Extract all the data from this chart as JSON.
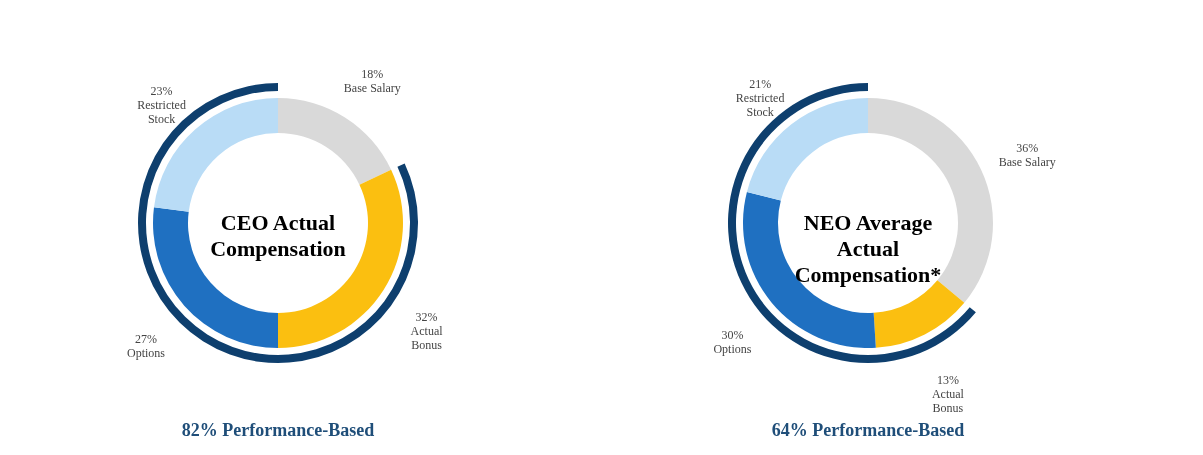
{
  "chart_data": [
    {
      "type": "donut",
      "title": "CEO Actual Compensation",
      "categories": [
        "Base Salary",
        "Actual Bonus",
        "Options",
        "Restricted Stock"
      ],
      "values": [
        18,
        32,
        27,
        23
      ],
      "colors": [
        "#d9d9d9",
        "#fbbf10",
        "#1f70c1",
        "#b9dcf6"
      ],
      "value_labels": [
        "18%",
        "32%",
        "27%",
        "23%"
      ],
      "legend": false,
      "annotations": [
        "82% Performance-Based"
      ]
    },
    {
      "type": "donut",
      "title": "NEO Average Actual Compensation*",
      "categories": [
        "Base Salary",
        "Actual Bonus",
        "Options",
        "Restricted Stock"
      ],
      "values": [
        36,
        13,
        30,
        21
      ],
      "colors": [
        "#d9d9d9",
        "#fbbf10",
        "#1f70c1",
        "#b9dcf6"
      ],
      "value_labels": [
        "36%",
        "13%",
        "30%",
        "21%"
      ],
      "legend": false,
      "annotations": [
        "64% Performance-Based"
      ]
    }
  ]
}
